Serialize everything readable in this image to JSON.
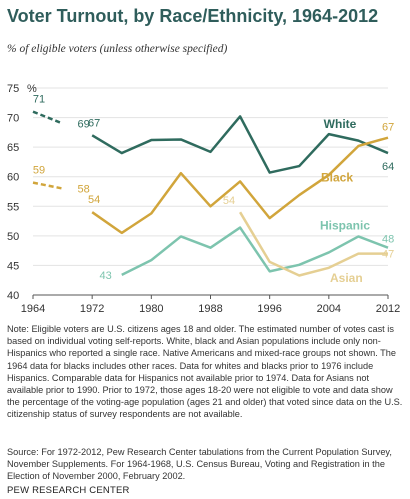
{
  "title": "Voter Turnout, by Race/Ethnicity, 1964-2012",
  "subtitle": "% of eligible voters (unless otherwise specified)",
  "note": "Note: Eligible voters are U.S. citizens ages 18 and older. The estimated number of votes cast is based on individual voting self-reports. White, black and Asian populations include only non-Hispanics who reported a single race. Native Americans and mixed-race groups not shown. The 1964 data for blacks includes other races. Data for whites and blacks prior to 1976 include Hispanics. Comparable data for Hispanics not available prior to 1974. Data for Asians not available prior to 1990. Prior to 1972, those ages 18-20 were not eligible to vote and data show the percentage of the voting-age population (ages 21 and older) that voted since data on the U.S. citizenship status of survey respondents are not available.",
  "source": "Source: For 1972-2012, Pew Research Center tabulations from the Current Population Survey, November Supplements. For 1964-1968, U.S. Census Bureau, Voting and Registration in the Election of November 2000, February 2002.",
  "org": "PEW RESEARCH CENTER",
  "chart_data": {
    "type": "line",
    "ylabel": "%",
    "ylim": [
      40,
      75
    ],
    "xlim": [
      1964,
      2012
    ],
    "yticks": [
      40,
      45,
      50,
      55,
      60,
      65,
      70,
      75
    ],
    "xticks": [
      1964,
      1972,
      1980,
      1988,
      1996,
      2004,
      2012
    ],
    "series": [
      {
        "name": "White",
        "color": "#2f6b5e",
        "dashed_x": [
          1964,
          1968
        ],
        "dashed_y": [
          71,
          69
        ],
        "x": [
          1972,
          1976,
          1980,
          1984,
          1988,
          1992,
          1996,
          2000,
          2004,
          2008,
          2012
        ],
        "y": [
          67,
          64,
          66.2,
          66.3,
          64.2,
          70.2,
          60.7,
          61.8,
          67.2,
          66.1,
          64
        ],
        "first_label": "67",
        "first_dashed_labels": [
          "71",
          "69"
        ],
        "last_label": "64"
      },
      {
        "name": "Black",
        "color": "#d1a53b",
        "dashed_x": [
          1964,
          1968
        ],
        "dashed_y": [
          59,
          58
        ],
        "x": [
          1972,
          1976,
          1980,
          1984,
          1988,
          1992,
          1996,
          2000,
          2004,
          2008,
          2012
        ],
        "y": [
          54,
          50.5,
          53.8,
          60.6,
          55,
          59.2,
          53,
          56.9,
          60.3,
          65.2,
          66.6
        ],
        "first_label": "54",
        "first_dashed_labels": [
          "59",
          "58"
        ],
        "last_label": "67"
      },
      {
        "name": "Hispanic",
        "color": "#7dc4ae",
        "x": [
          1976,
          1980,
          1984,
          1988,
          1992,
          1996,
          2000,
          2004,
          2008,
          2012
        ],
        "y": [
          43.4,
          45.9,
          49.9,
          48,
          51.4,
          44,
          45.1,
          47.2,
          49.9,
          48
        ],
        "first_label": "43",
        "last_label": "48"
      },
      {
        "name": "Asian",
        "color": "#e5cf93",
        "x": [
          1992,
          1996,
          2000,
          2004,
          2008,
          2012
        ],
        "y": [
          54,
          45.6,
          43.3,
          44.6,
          47,
          47
        ],
        "first_label": "54",
        "last_label": "47"
      }
    ]
  }
}
